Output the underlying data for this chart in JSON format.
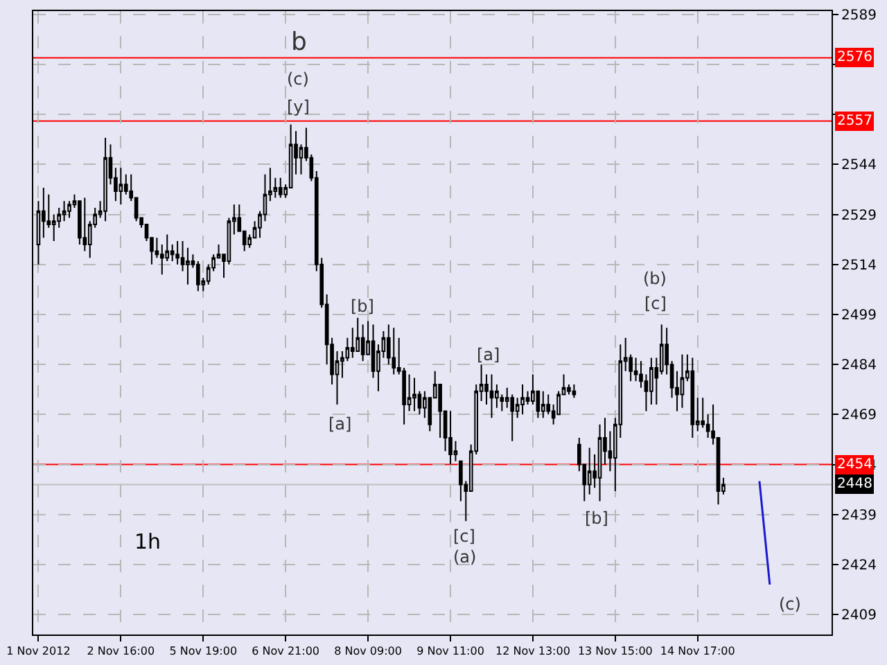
{
  "chart_data": {
    "type": "candlestick",
    "annotations": [
      "b",
      "(c)",
      "[y]",
      "[b]",
      "[a]",
      "[a]",
      "[c]",
      "(a)",
      "[b]",
      "(b)",
      "[c]",
      "(c)",
      "1h"
    ],
    "categories": [
      "1 Nov 2012",
      null,
      null,
      null,
      null,
      null,
      null,
      null,
      null,
      null,
      null,
      null,
      null,
      null,
      null,
      null,
      "2 Nov 16:00",
      null,
      null,
      null,
      null,
      null,
      null,
      null,
      null,
      null,
      null,
      null,
      null,
      null,
      null,
      null,
      "5 Nov 19:00",
      null,
      null,
      null,
      null,
      null,
      null,
      null,
      null,
      null,
      null,
      null,
      null,
      null,
      null,
      null,
      "6 Nov 21:00",
      null,
      null,
      null,
      null,
      null,
      null,
      null,
      null,
      null,
      null,
      null,
      null,
      null,
      null,
      null,
      "8 Nov 09:00",
      null,
      null,
      null,
      null,
      null,
      null,
      null,
      null,
      null,
      null,
      null,
      null,
      null,
      null,
      null,
      "9 Nov 11:00",
      null,
      null,
      null,
      null,
      null,
      null,
      null,
      null,
      null,
      null,
      null,
      null,
      null,
      null,
      null,
      "12 Nov 13:00",
      null,
      null,
      null,
      null,
      null,
      null,
      null,
      null,
      null,
      null,
      null,
      null,
      null,
      null,
      null,
      "13 Nov 15:00",
      null,
      null,
      null,
      null,
      null,
      null,
      null,
      null,
      null,
      null,
      null,
      null,
      null,
      null,
      null,
      "14 Nov 17:00",
      null,
      null,
      null,
      null,
      null,
      null,
      null,
      null,
      null,
      null,
      null,
      null,
      null,
      null,
      null,
      null,
      null,
      null,
      null,
      null,
      null,
      null,
      null,
      null,
      null
    ],
    "series": [
      {
        "color": "#000000",
        "ohlc": [
          [
            2520,
            2533,
            2514,
            2530
          ],
          [
            2530,
            2537,
            2522,
            2527
          ],
          [
            2527,
            2535,
            2525,
            2526
          ],
          [
            2526,
            2529,
            2521,
            2527
          ],
          [
            2527,
            2531,
            2525,
            2529
          ],
          [
            2529,
            2533,
            2527,
            2530
          ],
          [
            2530,
            2533,
            2528,
            2532
          ],
          [
            2532,
            2535,
            2531,
            2533
          ],
          [
            2533,
            2533,
            2520,
            2522
          ],
          [
            2522,
            2534,
            2518,
            2520
          ],
          [
            2520,
            2527,
            2516,
            2526
          ],
          [
            2526,
            2531,
            2525,
            2529
          ],
          [
            2529,
            2533,
            2528,
            2530
          ],
          [
            2530,
            2552,
            2527,
            2546
          ],
          [
            2546,
            2550,
            2538,
            2540
          ],
          [
            2540,
            2543,
            2533,
            2536
          ],
          [
            2536,
            2543,
            2532,
            2538
          ],
          [
            2538,
            2541,
            2535,
            2536
          ],
          [
            2536,
            2541,
            2533,
            2534
          ],
          [
            2534,
            2534,
            2527,
            2528
          ],
          [
            2528,
            2528,
            2525,
            2526
          ],
          [
            2526,
            2526,
            2521,
            2522
          ],
          [
            2522,
            2522,
            2514,
            2518
          ],
          [
            2518,
            2522,
            2516,
            2517
          ],
          [
            2517,
            2520,
            2511,
            2516
          ],
          [
            2516,
            2523,
            2515,
            2518
          ],
          [
            2518,
            2520,
            2515,
            2517
          ],
          [
            2517,
            2521,
            2514,
            2516
          ],
          [
            2516,
            2521,
            2512,
            2514
          ],
          [
            2514,
            2519,
            2508,
            2515
          ],
          [
            2515,
            2517,
            2513,
            2514
          ],
          [
            2514,
            2515,
            2506,
            2508
          ],
          [
            2508,
            2510,
            2506,
            2509
          ],
          [
            2509,
            2514,
            2508,
            2513
          ],
          [
            2513,
            2517,
            2512,
            2516
          ],
          [
            2516,
            2520,
            2516,
            2517
          ],
          [
            2517,
            2517,
            2510,
            2515
          ],
          [
            2515,
            2528,
            2514,
            2527
          ],
          [
            2527,
            2532,
            2523,
            2528
          ],
          [
            2528,
            2532,
            2524,
            2524
          ],
          [
            2524,
            2524,
            2518,
            2520
          ],
          [
            2520,
            2523,
            2519,
            2522
          ],
          [
            2522,
            2527,
            2522,
            2525
          ],
          [
            2525,
            2530,
            2522,
            2529
          ],
          [
            2529,
            2541,
            2527,
            2535
          ],
          [
            2535,
            2543,
            2533,
            2536
          ],
          [
            2536,
            2540,
            2534,
            2537
          ],
          [
            2537,
            2540,
            2534,
            2535
          ],
          [
            2535,
            2538,
            2534,
            2537
          ],
          [
            2537,
            2556,
            2537,
            2550
          ],
          [
            2550,
            2554,
            2541,
            2546
          ],
          [
            2546,
            2550,
            2541,
            2549
          ],
          [
            2549,
            2555,
            2545,
            2546
          ],
          [
            2546,
            2547,
            2539,
            2540
          ],
          [
            2540,
            2542,
            2512,
            2514
          ],
          [
            2514,
            2516,
            2501,
            2502
          ],
          [
            2502,
            2505,
            2484,
            2490
          ],
          [
            2490,
            2492,
            2478,
            2481
          ],
          [
            2481,
            2488,
            2472,
            2485
          ],
          [
            2485,
            2488,
            2480,
            2486
          ],
          [
            2486,
            2492,
            2485,
            2489
          ],
          [
            2489,
            2495,
            2486,
            2488
          ],
          [
            2488,
            2498,
            2488,
            2492
          ],
          [
            2492,
            2496,
            2485,
            2487
          ],
          [
            2487,
            2497,
            2487,
            2491
          ],
          [
            2491,
            2496,
            2480,
            2482
          ],
          [
            2482,
            2490,
            2476,
            2488
          ],
          [
            2488,
            2494,
            2486,
            2492
          ],
          [
            2492,
            2496,
            2484,
            2486
          ],
          [
            2486,
            2495,
            2481,
            2483
          ],
          [
            2483,
            2492,
            2481,
            2482
          ],
          [
            2482,
            2483,
            2466,
            2472
          ],
          [
            2472,
            2481,
            2470,
            2474
          ],
          [
            2474,
            2480,
            2470,
            2475
          ],
          [
            2475,
            2476,
            2469,
            2471
          ],
          [
            2471,
            2476,
            2468,
            2474
          ],
          [
            2474,
            2474,
            2464,
            2466
          ],
          [
            2474,
            2482,
            2474,
            2478
          ],
          [
            2478,
            2478,
            2462,
            2470
          ],
          [
            2470,
            2470,
            2458,
            2462
          ],
          [
            2462,
            2470,
            2454,
            2457
          ],
          [
            2457,
            2461,
            2455,
            2458
          ],
          [
            2455,
            2455,
            2443,
            2448
          ],
          [
            2448,
            2449,
            2437,
            2446
          ],
          [
            2446,
            2460,
            2446,
            2458
          ],
          [
            2458,
            2478,
            2457,
            2476
          ],
          [
            2476,
            2484,
            2473,
            2478
          ],
          [
            2478,
            2481,
            2472,
            2476
          ],
          [
            2476,
            2481,
            2468,
            2474
          ],
          [
            2474,
            2478,
            2471,
            2476
          ],
          [
            2474,
            2475,
            2470,
            2473
          ],
          [
            2473,
            2477,
            2471,
            2474
          ],
          [
            2474,
            2475,
            2461,
            2470
          ],
          [
            2470,
            2474,
            2468,
            2472
          ],
          [
            2472,
            2478,
            2469,
            2474
          ],
          [
            2474,
            2476,
            2472,
            2473
          ],
          [
            2473,
            2481,
            2472,
            2476
          ],
          [
            2476,
            2476,
            2468,
            2470
          ],
          [
            2470,
            2476,
            2468,
            2472
          ],
          [
            2472,
            2475,
            2469,
            2470
          ],
          [
            2470,
            2472,
            2466,
            2468
          ],
          [
            2469,
            2476,
            2469,
            2475
          ],
          [
            2475,
            2481,
            2475,
            2477
          ],
          [
            2477,
            2478,
            2475,
            2476
          ],
          [
            2476,
            2478,
            2474,
            2475
          ],
          [
            2460,
            2462,
            2452,
            2454
          ],
          [
            2454,
            2454,
            2443,
            2448
          ],
          [
            2448,
            2459,
            2445,
            2452
          ],
          [
            2452,
            2457,
            2447,
            2450
          ],
          [
            2450,
            2466,
            2443,
            2462
          ],
          [
            2462,
            2468,
            2454,
            2458
          ],
          [
            2458,
            2464,
            2452,
            2456
          ],
          [
            2456,
            2468,
            2446,
            2466
          ],
          [
            2466,
            2490,
            2462,
            2485
          ],
          [
            2485,
            2492,
            2482,
            2486
          ],
          [
            2486,
            2487,
            2479,
            2482
          ],
          [
            2482,
            2486,
            2479,
            2481
          ],
          [
            2481,
            2485,
            2477,
            2479
          ],
          [
            2479,
            2481,
            2470,
            2476
          ],
          [
            2476,
            2486,
            2472,
            2483
          ],
          [
            2483,
            2486,
            2472,
            2480
          ],
          [
            2482,
            2496,
            2481,
            2490
          ],
          [
            2490,
            2495,
            2481,
            2484
          ],
          [
            2484,
            2485,
            2474,
            2477
          ],
          [
            2477,
            2482,
            2470,
            2475
          ],
          [
            2475,
            2487,
            2471,
            2480
          ],
          [
            2480,
            2487,
            2479,
            2482
          ],
          [
            2482,
            2486,
            2462,
            2466
          ],
          [
            2466,
            2474,
            2464,
            2467
          ],
          [
            2467,
            2474,
            2465,
            2466
          ],
          [
            2466,
            2469,
            2462,
            2464
          ],
          [
            2464,
            2472,
            2460,
            2462
          ],
          [
            2462,
            2462,
            2442,
            2446
          ],
          [
            2446,
            2450,
            2445,
            2448
          ],
          null,
          null,
          null,
          null,
          null,
          null,
          null,
          null,
          null,
          null,
          null,
          null,
          null,
          null,
          null,
          null,
          null,
          null,
          null,
          null
        ]
      },
      {
        "type": "line",
        "color": "#1a1acc",
        "values": [
          null,
          null,
          null,
          null,
          null,
          null,
          null,
          null,
          null,
          null,
          null,
          null,
          null,
          null,
          null,
          null,
          null,
          null,
          null,
          null,
          null,
          null,
          null,
          null,
          null,
          null,
          null,
          null,
          null,
          null,
          null,
          null,
          null,
          null,
          null,
          null,
          null,
          null,
          null,
          null,
          null,
          null,
          null,
          null,
          null,
          null,
          null,
          null,
          null,
          null,
          null,
          null,
          null,
          null,
          null,
          null,
          null,
          null,
          null,
          null,
          null,
          null,
          null,
          null,
          null,
          null,
          null,
          null,
          null,
          null,
          null,
          null,
          null,
          null,
          null,
          null,
          null,
          null,
          null,
          null,
          null,
          null,
          null,
          null,
          null,
          null,
          null,
          null,
          null,
          null,
          null,
          null,
          null,
          null,
          null,
          null,
          null,
          null,
          null,
          null,
          null,
          null,
          null,
          null,
          null,
          null,
          null,
          null,
          null,
          null,
          null,
          null,
          null,
          null,
          null,
          null,
          null,
          null,
          null,
          null,
          null,
          null,
          null,
          null,
          null,
          null,
          null,
          null,
          null,
          null,
          null,
          null,
          null,
          null,
          null,
          null,
          null,
          null,
          null,
          null,
          2449,
          null,
          2418,
          null,
          null,
          null,
          null,
          null,
          null,
          null,
          null,
          null,
          null,
          null
        ]
      }
    ],
    "ylim": [
      2403,
      2590
    ],
    "yticks": [
      2409,
      2424,
      2439,
      2454,
      2469,
      2484,
      2499,
      2514,
      2529,
      2544,
      {
        "value": 2559,
        "label": null
      },
      {
        "value": 2574,
        "label": null
      },
      2589
    ],
    "ref_lines": [
      {
        "axis": "y",
        "value": 2576,
        "label": "2576",
        "color": "#ff0000"
      },
      {
        "axis": "y",
        "value": 2557,
        "label": "2557",
        "color": "#ff0000"
      },
      {
        "axis": "y",
        "value": 2454,
        "label": "2454",
        "color": "#ff0000"
      },
      {
        "axis": "y",
        "value": 2448,
        "label": "2448",
        "color": "#c0c0c0"
      }
    ],
    "grid": true
  }
}
